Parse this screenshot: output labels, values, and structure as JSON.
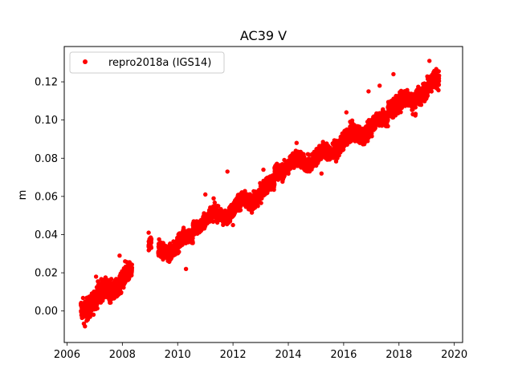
{
  "chart_data": {
    "type": "scatter",
    "title": "AC39 V",
    "xlabel": "",
    "ylabel": "m",
    "xlim": [
      2005.9,
      2020.3
    ],
    "ylim": [
      -0.0165,
      0.1385
    ],
    "xticks": [
      2006,
      2008,
      2010,
      2012,
      2014,
      2016,
      2018,
      2020
    ],
    "yticks": [
      0.0,
      0.02,
      0.04,
      0.06,
      0.08,
      0.1,
      0.12
    ],
    "ytick_labels": [
      "0.00",
      "0.02",
      "0.04",
      "0.06",
      "0.08",
      "0.10",
      "0.12"
    ],
    "grid": false,
    "legend_position": "top-left",
    "colors": {
      "series": "#ff0000"
    },
    "series": [
      {
        "name": "repro2018a (IGS14)",
        "marker": "dot",
        "color": "#ff0000",
        "segments": [
          {
            "x_start": 2006.5,
            "x_end": 2007.3,
            "y_start": 0.001,
            "y_end": 0.009,
            "spread": 0.006
          },
          {
            "x_start": 2007.3,
            "x_end": 2008.35,
            "y_start": 0.009,
            "y_end": 0.019,
            "spread": 0.0055
          },
          {
            "x_start": 2008.95,
            "x_end": 2009.05,
            "y_start": 0.034,
            "y_end": 0.036,
            "spread": 0.004
          },
          {
            "x_start": 2009.3,
            "x_end": 2010.55,
            "y_start": 0.03,
            "y_end": 0.039,
            "spread": 0.0045
          },
          {
            "x_start": 2010.55,
            "x_end": 2012.0,
            "y_start": 0.045,
            "y_end": 0.053,
            "spread": 0.004
          },
          {
            "x_start": 2012.0,
            "x_end": 2013.5,
            "y_start": 0.053,
            "y_end": 0.066,
            "spread": 0.0045
          },
          {
            "x_start": 2013.5,
            "x_end": 2015.6,
            "y_start": 0.074,
            "y_end": 0.083,
            "spread": 0.0045
          },
          {
            "x_start": 2015.6,
            "x_end": 2017.6,
            "y_start": 0.086,
            "y_end": 0.101,
            "spread": 0.0045
          },
          {
            "x_start": 2017.6,
            "x_end": 2018.6,
            "y_start": 0.108,
            "y_end": 0.11,
            "spread": 0.005
          },
          {
            "x_start": 2018.6,
            "x_end": 2019.45,
            "y_start": 0.114,
            "y_end": 0.12,
            "spread": 0.005
          }
        ],
        "outliers": [
          {
            "x": 2006.65,
            "y": -0.008
          },
          {
            "x": 2007.05,
            "y": 0.018
          },
          {
            "x": 2007.9,
            "y": 0.029
          },
          {
            "x": 2008.1,
            "y": 0.026
          },
          {
            "x": 2008.95,
            "y": 0.041
          },
          {
            "x": 2010.3,
            "y": 0.022
          },
          {
            "x": 2011.0,
            "y": 0.061
          },
          {
            "x": 2011.3,
            "y": 0.059
          },
          {
            "x": 2011.8,
            "y": 0.073
          },
          {
            "x": 2012.0,
            "y": 0.045
          },
          {
            "x": 2012.9,
            "y": 0.055
          },
          {
            "x": 2013.1,
            "y": 0.074
          },
          {
            "x": 2014.3,
            "y": 0.088
          },
          {
            "x": 2015.2,
            "y": 0.072
          },
          {
            "x": 2016.1,
            "y": 0.104
          },
          {
            "x": 2016.9,
            "y": 0.115
          },
          {
            "x": 2017.3,
            "y": 0.118
          },
          {
            "x": 2017.8,
            "y": 0.124
          },
          {
            "x": 2018.5,
            "y": 0.103
          },
          {
            "x": 2019.1,
            "y": 0.131
          }
        ]
      }
    ]
  }
}
